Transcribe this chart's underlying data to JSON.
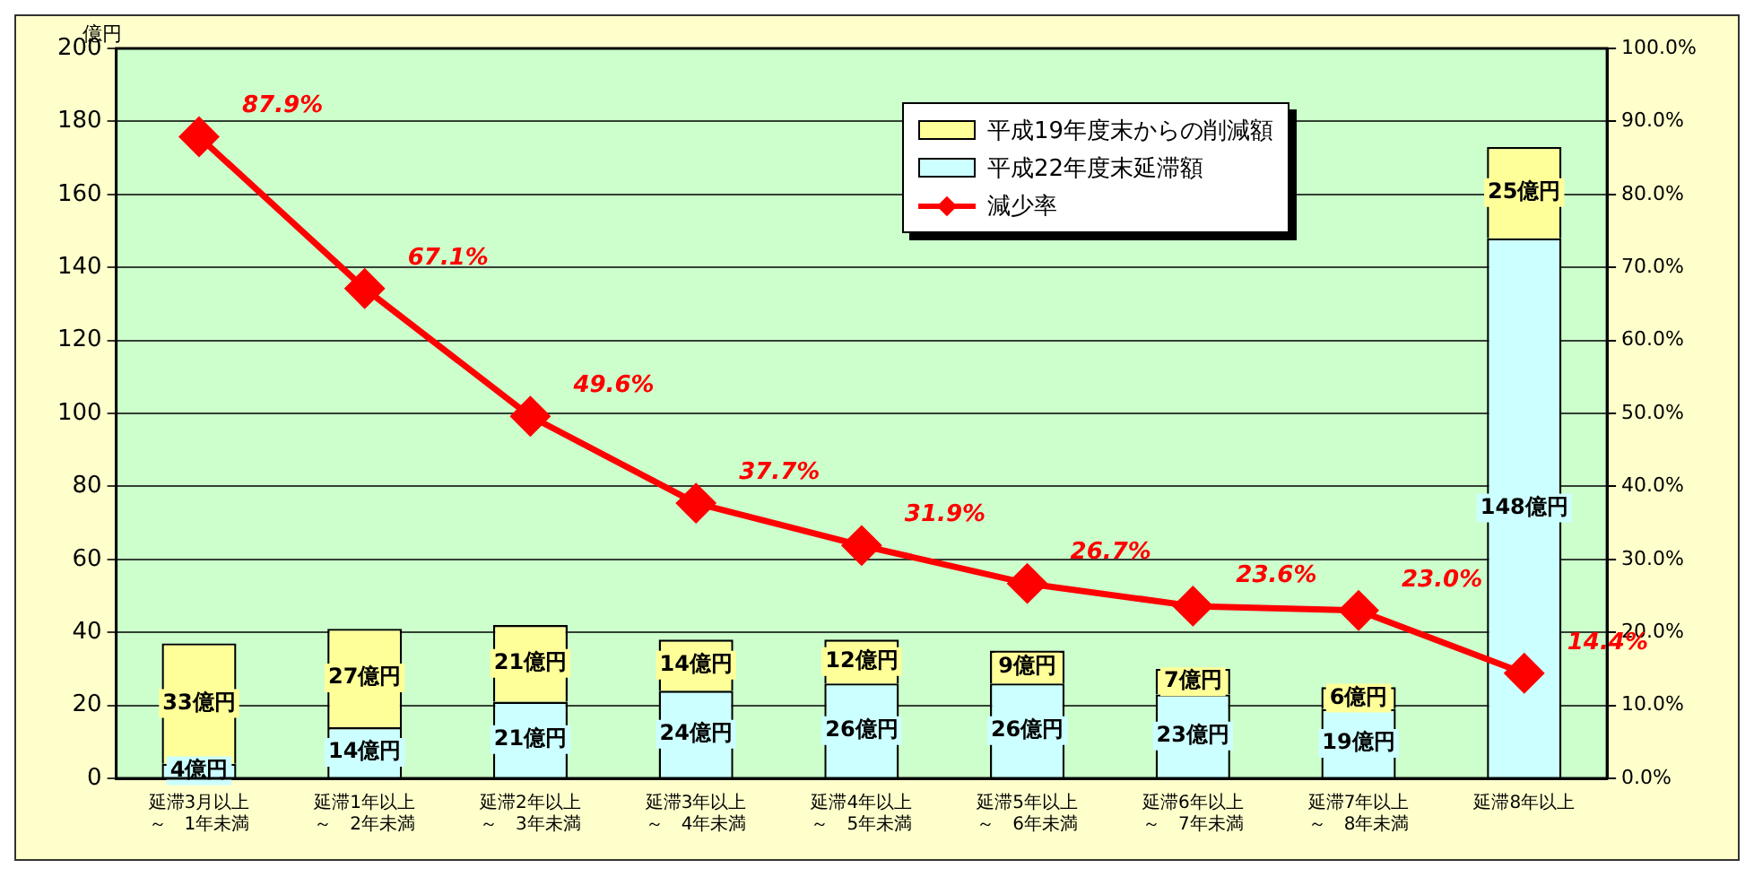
{
  "chart_data": {
    "type": "bar",
    "stacked": true,
    "ylabel": "億円",
    "categories": [
      "延滞3月以上～　1年未満",
      "延滞1年以上～　2年未満",
      "延滞2年以上～　3年未満",
      "延滞3年以上～　4年未満",
      "延滞4年以上～　5年未満",
      "延滞5年以上～　6年未満",
      "延滞6年以上～　7年未満",
      "延滞7年以上～　8年未満",
      "延滞8年以上"
    ],
    "series": [
      {
        "name": "平成22年度末延滞額",
        "type": "bar",
        "color": "#ccffff",
        "values": [
          4,
          14,
          21,
          24,
          26,
          26,
          23,
          19,
          148
        ],
        "value_labels": [
          "4億円",
          "14億円",
          "21億円",
          "24億円",
          "26億円",
          "26億円",
          "23億円",
          "19億円",
          "148億円"
        ]
      },
      {
        "name": "平成19年度末からの削減額",
        "type": "bar",
        "color": "#ffff99",
        "values": [
          33,
          27,
          21,
          14,
          12,
          9,
          7,
          6,
          25
        ],
        "value_labels": [
          "33億円",
          "27億円",
          "21億円",
          "14億円",
          "12億円",
          "9億円",
          "7億円",
          "6億円",
          "25億円"
        ]
      },
      {
        "name": "減少率",
        "type": "line",
        "axis": "y2",
        "color": "#ff0000",
        "marker": "diamond",
        "line_style": "solid",
        "values": [
          87.9,
          67.1,
          49.6,
          37.7,
          31.9,
          26.7,
          23.6,
          23.0,
          14.4
        ],
        "value_labels": [
          "87.9%",
          "67.1%",
          "49.6%",
          "37.7%",
          "31.9%",
          "26.7%",
          "23.6%",
          "23.0%",
          "14.4%"
        ]
      }
    ],
    "ylim": [
      0,
      200
    ],
    "yticks": [
      0,
      20,
      40,
      60,
      80,
      100,
      120,
      140,
      160,
      180,
      200
    ],
    "y2lim": [
      0,
      100
    ],
    "y2ticks": [
      {
        "value": 0,
        "label": "0.0%"
      },
      {
        "value": 10,
        "label": "10.0%"
      },
      {
        "value": 20,
        "label": "20.0%"
      },
      {
        "value": 30,
        "label": "30.0%"
      },
      {
        "value": 40,
        "label": "40.0%"
      },
      {
        "value": 50,
        "label": "50.0%"
      },
      {
        "value": 60,
        "label": "60.0%"
      },
      {
        "value": 70,
        "label": "70.0%"
      },
      {
        "value": 80,
        "label": "80.0%"
      },
      {
        "value": 90,
        "label": "90.0%"
      },
      {
        "value": 100,
        "label": "100.0%"
      }
    ],
    "grid": "y",
    "legend": "top right"
  }
}
